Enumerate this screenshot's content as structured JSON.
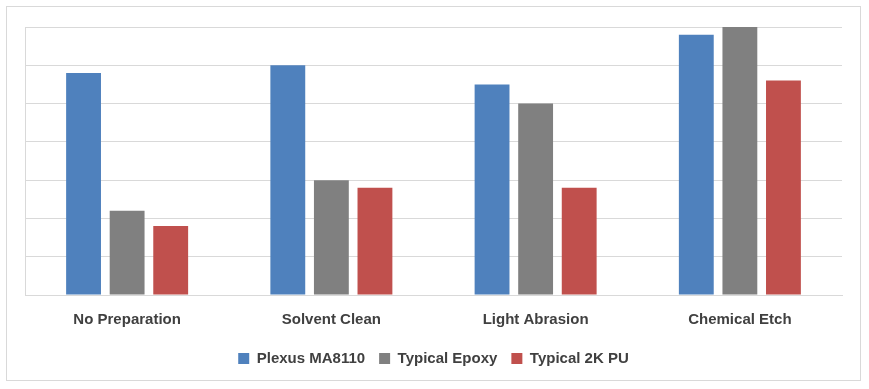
{
  "chart_data": {
    "type": "bar",
    "categories": [
      "No Preparation",
      "Solvent Clean",
      "Light Abrasion",
      "Chemical Etch"
    ],
    "series": [
      {
        "name": "Plexus MA8110",
        "color": "#4f81bd",
        "values": [
          5.8,
          6.0,
          5.5,
          6.8
        ]
      },
      {
        "name": "Typical Epoxy",
        "color": "#808080",
        "values": [
          2.2,
          3.0,
          5.0,
          7.0
        ]
      },
      {
        "name": "Typical 2K PU",
        "color": "#c0504d",
        "values": [
          1.8,
          2.8,
          2.8,
          5.6
        ]
      }
    ],
    "ylim": [
      0,
      7
    ],
    "yticks": [
      0,
      1,
      2,
      3,
      4,
      5,
      6,
      7
    ],
    "grid": true,
    "legend": "bottom",
    "tick_labels": "x"
  }
}
